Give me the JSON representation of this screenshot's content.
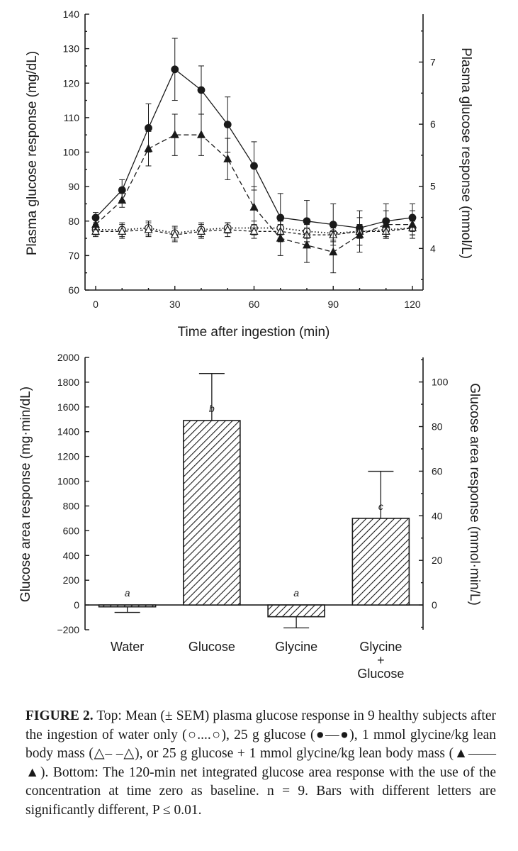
{
  "chart_data": [
    {
      "type": "line",
      "title": "",
      "xlabel": "Time after ingestion (min)",
      "ylabel": "Plasma glucose response (mg/dL)",
      "ylabel_right": "Plasma glucose response (mmol/L)",
      "xlim": [
        0,
        120
      ],
      "ylim": [
        60,
        140
      ],
      "xticks": [
        0,
        30,
        60,
        90,
        120
      ],
      "yticks": [
        60,
        70,
        80,
        90,
        100,
        110,
        120,
        130,
        140
      ],
      "yticks_right": [
        4,
        5,
        6,
        7
      ],
      "grid": false,
      "x": [
        0,
        10,
        20,
        30,
        40,
        50,
        60,
        70,
        80,
        90,
        100,
        110,
        120
      ],
      "series": [
        {
          "name": "Water",
          "marker": "open circle",
          "line": "dotted",
          "values": [
            77.5,
            77.5,
            78,
            76.5,
            77.5,
            78,
            78,
            78,
            77,
            76.5,
            77,
            77.5,
            78
          ],
          "errors": [
            1.5,
            2,
            2,
            2,
            2,
            1.5,
            2,
            2,
            2,
            2,
            2,
            2,
            2
          ]
        },
        {
          "name": "Glucose",
          "marker": "filled circle",
          "line": "solid",
          "values": [
            81,
            89,
            107,
            124,
            118,
            108,
            96,
            81,
            80,
            79,
            78,
            80,
            81
          ],
          "errors": [
            1.5,
            3,
            7,
            9,
            7,
            8,
            7,
            7,
            6,
            6,
            5,
            5,
            4
          ]
        },
        {
          "name": "Glycine",
          "marker": "open triangle",
          "line": "dashed",
          "values": [
            77,
            77,
            77.5,
            76,
            77,
            77.5,
            77,
            77,
            76,
            76,
            77,
            77,
            78
          ],
          "errors": [
            1.5,
            2,
            2,
            2,
            2,
            2,
            2,
            2,
            2,
            2,
            2,
            2,
            2
          ]
        },
        {
          "name": "Glycine + Glucose",
          "marker": "filled triangle",
          "line": "long-dash",
          "values": [
            79,
            86,
            101,
            105,
            105,
            98,
            84,
            75,
            73,
            71,
            76,
            79,
            79
          ],
          "errors": [
            1.5,
            2,
            5,
            6,
            6,
            6,
            6,
            5,
            5,
            6,
            5,
            4,
            4
          ]
        }
      ]
    },
    {
      "type": "bar",
      "title": "",
      "xlabel": "",
      "ylabel": "Glucose area response (mg·min/dL)",
      "ylabel_right": "Glucose area response (mmol·min/L)",
      "ylim": [
        -200,
        2000
      ],
      "yticks": [
        -200,
        0,
        200,
        400,
        600,
        800,
        1000,
        1200,
        1400,
        1600,
        1800,
        2000
      ],
      "yticks_right": [
        0,
        20,
        40,
        60,
        80,
        100
      ],
      "grid": false,
      "categories": [
        [
          "Water"
        ],
        [
          "Glucose"
        ],
        [
          "Glycine"
        ],
        [
          "Glycine",
          "+",
          "Glucose"
        ]
      ],
      "values": [
        -15,
        1490,
        -95,
        700
      ],
      "errors": [
        45,
        380,
        90,
        380
      ],
      "letters": [
        "a",
        "b",
        "a",
        "c"
      ]
    }
  ],
  "caption": {
    "label": "FIGURE 2.",
    "text": " Top: Mean (± SEM) plasma glucose response in 9 healthy subjects after the ingestion of water only (○....○), 25 g glucose (●—●), 1 mmol glycine/kg lean body mass (△– –△), or 25 g glucose + 1 mmol glycine/kg lean body mass (▲——▲). Bottom: The 120-min net integrated glucose area response with the use of the concentration at time zero as baseline. n = 9. Bars with different letters are significantly different, P ≤ 0.01."
  }
}
